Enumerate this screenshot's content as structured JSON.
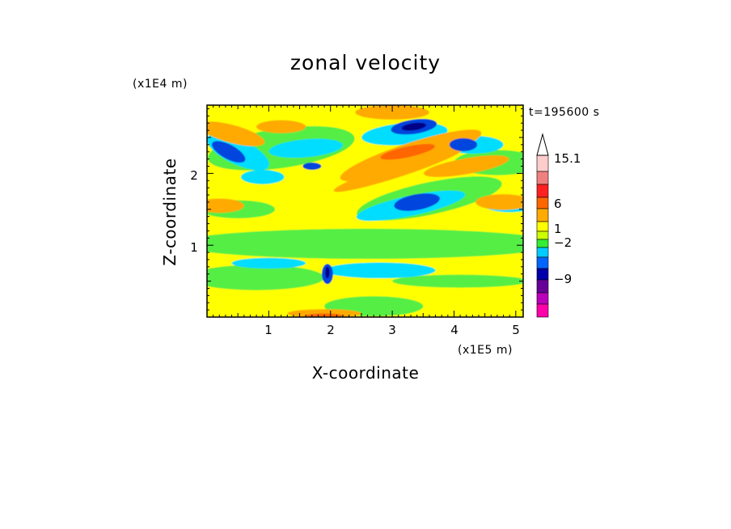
{
  "chart_data": {
    "type": "contour",
    "title": "zonal velocity",
    "xlabel": "X-coordinate",
    "ylabel": "Z-coordinate",
    "x_unit": "(x1E5 m)",
    "y_unit": "(x1E4 m)",
    "time_label": "t=195600 s",
    "xlim": [
      0,
      5.12
    ],
    "ylim": [
      0,
      2.95
    ],
    "xticks": [
      "1",
      "2",
      "3",
      "4",
      "5"
    ],
    "yticks": [
      "1",
      "2"
    ],
    "colorbar": {
      "labels": [
        "15.1",
        "6",
        "1",
        "−2",
        "−9"
      ],
      "colors": [
        "#ffcccc",
        "#f08080",
        "#ff2020",
        "#ff6600",
        "#ffaa00",
        "#ffff00",
        "#ccff00",
        "#33ee33",
        "#00ccff",
        "#0066ff",
        "#0000aa",
        "#660099",
        "#bb00bb",
        "#ff00aa"
      ]
    },
    "palette": {
      "yellow": "#eeff00",
      "green": "#55ee44",
      "orange": "#ffaa00",
      "red_orange": "#ff6600",
      "cyan": "#00ddff",
      "blue": "#0044dd",
      "navy": "#000088"
    }
  }
}
